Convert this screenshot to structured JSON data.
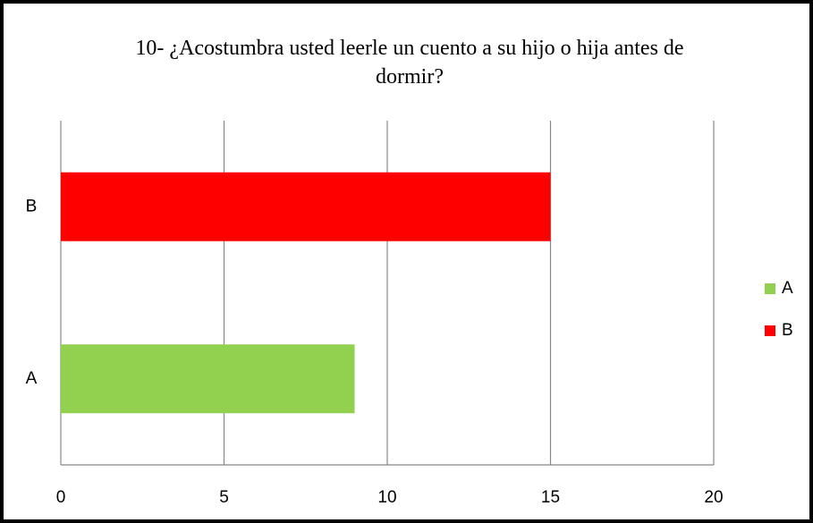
{
  "chart_data": {
    "type": "barh",
    "title": "10- ¿Acostumbra usted leerle un cuento a su hijo o hija antes de dormir?",
    "categories": [
      "A",
      "B"
    ],
    "values": [
      9,
      15
    ],
    "colors": [
      "#92d050",
      "#ff0000"
    ],
    "xlim": [
      0,
      20
    ],
    "xticks": [
      0,
      5,
      10,
      15,
      20
    ],
    "grid": true,
    "legend": "right"
  }
}
